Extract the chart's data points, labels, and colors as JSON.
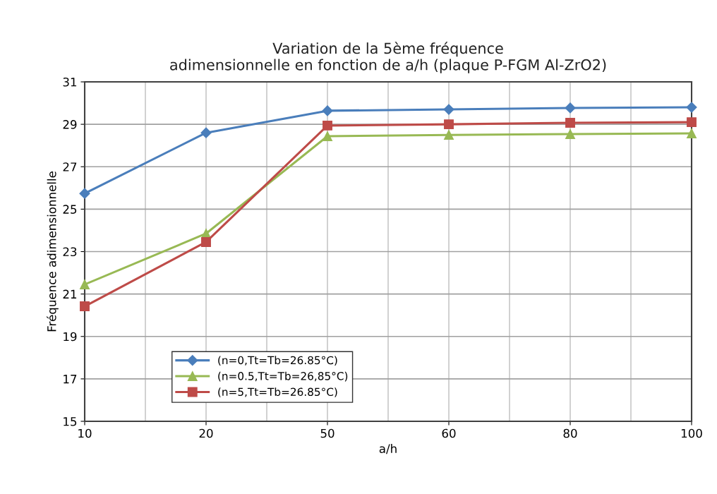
{
  "chart_data": {
    "type": "line",
    "title": "Variation de la 5ème fréquence\nadimensionnelle en fonction de a/h (plaque P-FGM Al-ZrO2)",
    "xlabel": "a/h",
    "ylabel": "Fréquence adimensionnelle",
    "categories": [
      "10",
      "20",
      "50",
      "60",
      "80",
      "100"
    ],
    "series": [
      {
        "name": "(n=0,Tt=Tb=26.85°C)",
        "color": "#4a7ebb",
        "marker": "diamond",
        "values": [
          25.74,
          28.6,
          29.64,
          29.7,
          29.77,
          29.8
        ]
      },
      {
        "name": "(n=0.5,Tt=Tb=26,85°C)",
        "color": "#98b954",
        "marker": "triangle",
        "values": [
          21.45,
          23.85,
          28.44,
          28.5,
          28.54,
          28.57
        ]
      },
      {
        "name": "(n=5,Tt=Tb=26.85°C)",
        "color": "#be4b48",
        "marker": "square",
        "values": [
          20.42,
          23.45,
          28.94,
          29.0,
          29.07,
          29.1
        ]
      }
    ],
    "ylim": [
      15,
      31
    ],
    "yticks": [
      15,
      17,
      19,
      21,
      23,
      25,
      27,
      29,
      31
    ],
    "grid": true,
    "legend": "bottom left",
    "line_style": "solid"
  }
}
